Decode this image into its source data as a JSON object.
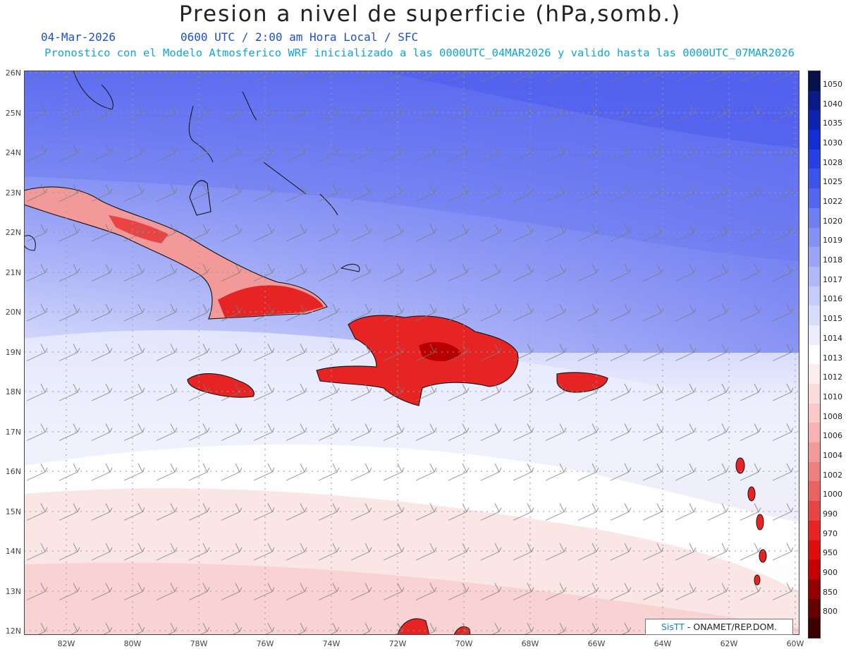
{
  "title": "Presion a nivel de superficie (hPa,somb.)",
  "date": "04-Mar-2026",
  "time_info": "0600 UTC / 2:00 am Hora Local / SFC",
  "forecast_info": "Pronostico con el Modelo Atmosferico WRF inicializado a las 0000UTC_04MAR2026 y valido hasta las  0000UTC_07MAR2026",
  "lat_labels": [
    "26N",
    "25N",
    "24N",
    "23N",
    "22N",
    "21N",
    "20N",
    "19N",
    "18N",
    "17N",
    "16N",
    "15N",
    "14N",
    "13N",
    "12N"
  ],
  "lon_labels": [
    "82W",
    "80W",
    "78W",
    "76W",
    "74W",
    "72W",
    "70W",
    "68W",
    "66W",
    "64W",
    "62W",
    "60W"
  ],
  "credit": {
    "brand": "SisTT",
    "text": " - ONAMET/REP.DOM."
  },
  "colorbar": [
    {
      "label": "1050",
      "color": "#07104d"
    },
    {
      "label": "1040",
      "color": "#0a1a86"
    },
    {
      "label": "1035",
      "color": "#0d23b0"
    },
    {
      "label": "1030",
      "color": "#112ed4"
    },
    {
      "label": "1028",
      "color": "#2740e6"
    },
    {
      "label": "1025",
      "color": "#3d54ec"
    },
    {
      "label": "1022",
      "color": "#5466f0"
    },
    {
      "label": "1020",
      "color": "#6f7ff2"
    },
    {
      "label": "1019",
      "color": "#8592f4"
    },
    {
      "label": "1018",
      "color": "#9aa5f6"
    },
    {
      "label": "1017",
      "color": "#b0b8f8"
    },
    {
      "label": "1016",
      "color": "#c5cbfa"
    },
    {
      "label": "1015",
      "color": "#d8dcfb"
    },
    {
      "label": "1014",
      "color": "#ebedfd"
    },
    {
      "label": "1013",
      "color": "#ffffff"
    },
    {
      "label": "1012",
      "color": "#fdecec"
    },
    {
      "label": "1010",
      "color": "#fbdcdc"
    },
    {
      "label": "1008",
      "color": "#f8c9c9"
    },
    {
      "label": "1006",
      "color": "#f5b3b3"
    },
    {
      "label": "1004",
      "color": "#f29a9a"
    },
    {
      "label": "1002",
      "color": "#ee7f7f"
    },
    {
      "label": "1000",
      "color": "#ea6262"
    },
    {
      "label": "990",
      "color": "#e84444"
    },
    {
      "label": "970",
      "color": "#e62424"
    },
    {
      "label": "950",
      "color": "#e00d0d"
    },
    {
      "label": "900",
      "color": "#c40000"
    },
    {
      "label": "850",
      "color": "#950000"
    },
    {
      "label": "800",
      "color": "#650000"
    },
    {
      "label": "",
      "color": "#3c0000"
    }
  ]
}
